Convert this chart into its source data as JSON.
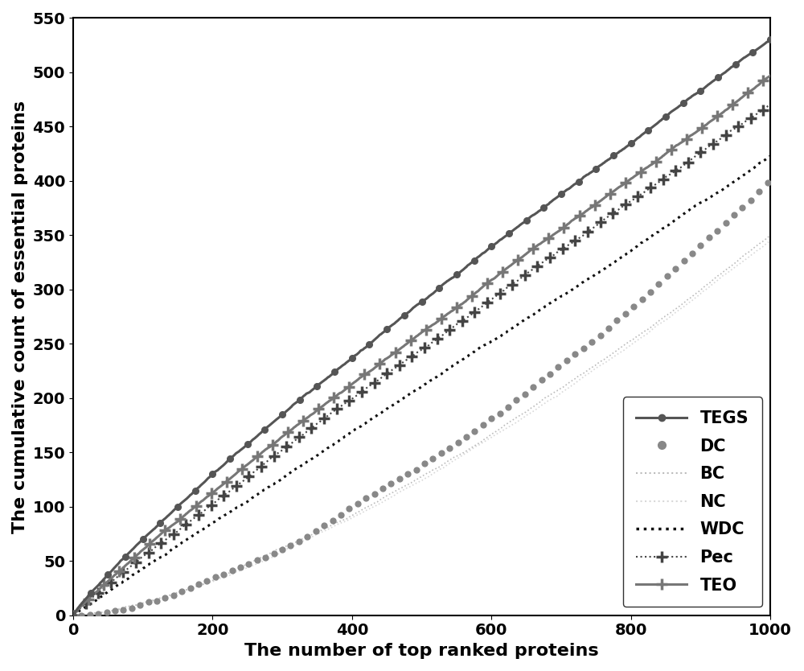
{
  "xlabel": "The number of top ranked proteins",
  "ylabel": "The cumulative count of essential proteins",
  "xlim": [
    0,
    1000
  ],
  "ylim": [
    0,
    550
  ],
  "xticks": [
    0,
    200,
    400,
    600,
    800,
    1000
  ],
  "yticks": [
    0,
    50,
    100,
    150,
    200,
    250,
    300,
    350,
    400,
    450,
    500,
    550
  ],
  "series": {
    "TEGS": {
      "color": "#555555",
      "linewidth": 2.2,
      "linestyle": "-",
      "marker": "o",
      "markersize": 5.5,
      "markevery": 25,
      "end_value": 530,
      "curvature": 0.88
    },
    "DC": {
      "color": "#888888",
      "linewidth": 0,
      "linestyle": "none",
      "marker": "o",
      "markersize": 7,
      "markevery": 12,
      "end_value": 401,
      "curvature": 1.55
    },
    "BC": {
      "color": "#bbbbbb",
      "linewidth": 1.2,
      "linestyle": ":",
      "marker": "none",
      "markersize": 0,
      "markevery": 1,
      "end_value": 350,
      "curvature": 1.45
    },
    "NC": {
      "color": "#d8d8d8",
      "linewidth": 1.2,
      "linestyle": ":",
      "marker": "none",
      "markersize": 0,
      "markevery": 1,
      "end_value": 345,
      "curvature": 1.5
    },
    "WDC": {
      "color": "#111111",
      "linewidth": 2.2,
      "linestyle": ":",
      "marker": "none",
      "markersize": 0,
      "markevery": 1,
      "end_value": 423,
      "curvature": 1.0
    },
    "Pec": {
      "color": "#444444",
      "linewidth": 1.5,
      "linestyle": ":",
      "marker": "+",
      "markersize": 10,
      "markevery": 18,
      "end_value": 470,
      "curvature": 0.95
    },
    "TEO": {
      "color": "#777777",
      "linewidth": 2.2,
      "linestyle": "-",
      "marker": "+",
      "markersize": 10,
      "markevery": 22,
      "end_value": 497,
      "curvature": 0.92
    }
  },
  "legend_fontsize": 15,
  "axis_fontsize": 16,
  "tick_fontsize": 14,
  "background_color": "#ffffff"
}
